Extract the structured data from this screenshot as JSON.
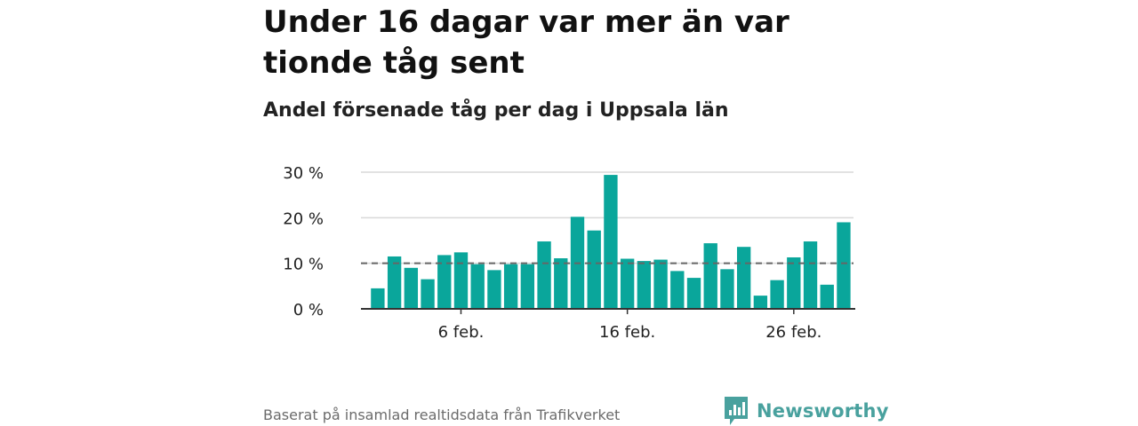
{
  "title": "Under 16 dagar var mer än var tionde tåg sent",
  "subtitle": "Andel försenade tåg per dag i Uppsala län",
  "source": "Baserat på insamlad realtidsdata från Trafikverket",
  "brand": {
    "name": "Newsworthy",
    "logo_icon": "newsworthy-chart-badge-icon",
    "color": "#49a19e"
  },
  "colors": {
    "bar": "#0aa69b",
    "grid": "#d9d9d9",
    "axis": "#333333",
    "reference_line": "#666666"
  },
  "chart_data": {
    "type": "bar",
    "x": [
      "1 feb.",
      "2 feb.",
      "3 feb.",
      "4 feb.",
      "5 feb.",
      "6 feb.",
      "7 feb.",
      "8 feb.",
      "9 feb.",
      "10 feb.",
      "11 feb.",
      "12 feb.",
      "13 feb.",
      "14 feb.",
      "15 feb.",
      "16 feb.",
      "17 feb.",
      "18 feb.",
      "19 feb.",
      "20 feb.",
      "21 feb.",
      "22 feb.",
      "23 feb.",
      "24 feb.",
      "25 feb.",
      "26 feb.",
      "27 feb.",
      "28 feb.",
      "29 feb."
    ],
    "values": [
      4.5,
      11.5,
      9.0,
      6.5,
      11.8,
      12.4,
      9.8,
      8.5,
      9.8,
      9.8,
      14.8,
      11.1,
      20.2,
      17.2,
      29.4,
      11.0,
      10.5,
      10.8,
      8.3,
      6.8,
      14.4,
      8.7,
      13.6,
      2.9,
      6.3,
      11.3,
      14.8,
      5.3,
      19.0
    ],
    "xticks": [
      {
        "index": 5,
        "label": "6 feb."
      },
      {
        "index": 15,
        "label": "16 feb."
      },
      {
        "index": 25,
        "label": "26 feb."
      }
    ],
    "yticks": [
      {
        "value": 0,
        "label": "0 %"
      },
      {
        "value": 10,
        "label": "10 %"
      },
      {
        "value": 20,
        "label": "20 %"
      },
      {
        "value": 30,
        "label": "30 %"
      }
    ],
    "ylim": [
      0,
      30
    ],
    "reference_line": 10,
    "grid": true,
    "xlabel": "",
    "ylabel": ""
  }
}
